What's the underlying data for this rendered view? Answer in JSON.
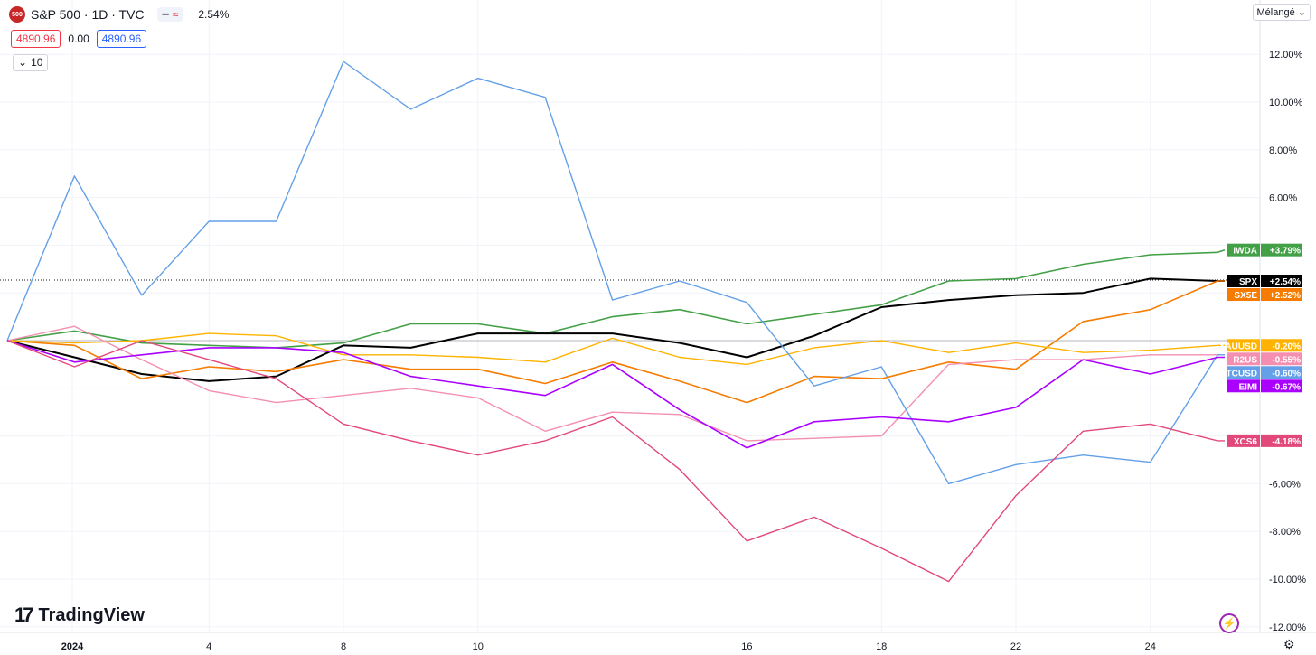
{
  "header": {
    "symbol_logo": "500",
    "title": "S&P 500 · 1D · TVC",
    "change": "2.54%",
    "sell_price": "4890.96",
    "spread": "0.00",
    "buy_price": "4890.96",
    "indicator_count": "10",
    "scale_mode": "Mélangé"
  },
  "branding": {
    "name": "TradingView"
  },
  "chart_data": {
    "type": "line",
    "x_ticks": [
      "2024",
      "4",
      "8",
      "10",
      "16",
      "18",
      "22",
      "24"
    ],
    "y_ticks": [
      "12.00%",
      "10.00%",
      "8.00%",
      "6.00%",
      "-6.00%",
      "-8.00%",
      "-10.00%",
      "-12.00%"
    ],
    "ylim": [
      -12.5,
      13
    ],
    "y_unit": "%",
    "baseline": 0,
    "current_line_value": 2.54,
    "x": [
      "2024-01-01",
      "2024-01-02",
      "2024-01-03",
      "2024-01-04",
      "2024-01-05",
      "2024-01-08",
      "2024-01-09",
      "2024-01-10",
      "2024-01-11",
      "2024-01-12",
      "2024-01-15",
      "2024-01-16",
      "2024-01-17",
      "2024-01-18",
      "2024-01-19",
      "2024-01-22",
      "2024-01-23",
      "2024-01-24",
      "2024-01-25",
      "2024-01-26"
    ],
    "series": [
      {
        "name": "IWDA",
        "badge": "+3.79%",
        "color": "#43a047",
        "width": 1.6,
        "values": [
          0,
          0.4,
          -0.1,
          -0.2,
          -0.3,
          -0.1,
          0.7,
          0.7,
          0.3,
          1.0,
          1.3,
          0.7,
          1.1,
          1.5,
          2.5,
          2.6,
          3.2,
          3.6,
          3.7,
          3.8
        ]
      },
      {
        "name": "SPX",
        "badge": "+2.54%",
        "color": "#000000",
        "width": 2,
        "values": [
          0,
          -0.7,
          -1.4,
          -1.7,
          -1.5,
          -0.2,
          -0.3,
          0.3,
          0.3,
          0.3,
          -0.1,
          -0.7,
          0.2,
          1.4,
          1.7,
          1.9,
          2.0,
          2.6,
          2.5,
          2.5
        ]
      },
      {
        "name": "SX5E",
        "badge": "+2.52%",
        "color": "#f57c00",
        "width": 1.6,
        "values": [
          0,
          -0.2,
          -1.6,
          -1.1,
          -1.3,
          -0.8,
          -1.2,
          -1.2,
          -1.8,
          -0.9,
          -1.7,
          -2.6,
          -1.5,
          -1.6,
          -0.9,
          -1.2,
          0.8,
          1.3,
          2.5,
          2.5
        ]
      },
      {
        "name": "XAUUSD",
        "badge": "-0.20%",
        "color": "#ffb300",
        "width": 1.4,
        "values": [
          0,
          -0.1,
          0.0,
          0.3,
          0.2,
          -0.6,
          -0.6,
          -0.7,
          -0.9,
          0.1,
          -0.7,
          -1.0,
          -0.3,
          0.0,
          -0.5,
          -0.1,
          -0.5,
          -0.4,
          -0.2,
          -0.2
        ]
      },
      {
        "name": "R2US",
        "badge": "-0.55%",
        "color": "#f48fb1",
        "width": 1.4,
        "values": [
          0,
          0.6,
          -0.8,
          -2.1,
          -2.6,
          -2.3,
          -2.0,
          -2.4,
          -3.8,
          -3.0,
          -3.1,
          -4.2,
          -4.1,
          -4.0,
          -1.0,
          -0.8,
          -0.8,
          -0.6,
          -0.6,
          -0.6
        ]
      },
      {
        "name": "BTCUSD",
        "badge": "-0.60%",
        "color": "#64a0e8",
        "width": 1.4,
        "values": [
          0,
          6.9,
          1.9,
          5.0,
          5.0,
          11.7,
          9.7,
          11.0,
          10.2,
          1.7,
          2.5,
          1.6,
          -1.9,
          -1.1,
          -6.0,
          -5.2,
          -4.8,
          -5.1,
          -0.6,
          -0.6
        ]
      },
      {
        "name": "EIMI",
        "badge": "-0.67%",
        "color": "#aa00ff",
        "width": 1.6,
        "values": [
          0,
          -0.9,
          -0.6,
          -0.3,
          -0.3,
          -0.5,
          -1.5,
          -1.9,
          -2.3,
          -1.0,
          -2.9,
          -4.5,
          -3.4,
          -3.2,
          -3.4,
          -2.8,
          -0.8,
          -1.4,
          -0.7,
          -0.7
        ]
      },
      {
        "name": "XCS6",
        "badge": "-4.18%",
        "color": "#e2487a",
        "width": 1.4,
        "values": [
          0,
          -1.1,
          0.0,
          -0.8,
          -1.6,
          -3.5,
          -4.2,
          -4.8,
          -4.2,
          -3.2,
          -5.4,
          -8.4,
          -7.4,
          -8.7,
          -10.1,
          -6.5,
          -3.8,
          -3.5,
          -4.2,
          -4.2
        ]
      }
    ]
  }
}
